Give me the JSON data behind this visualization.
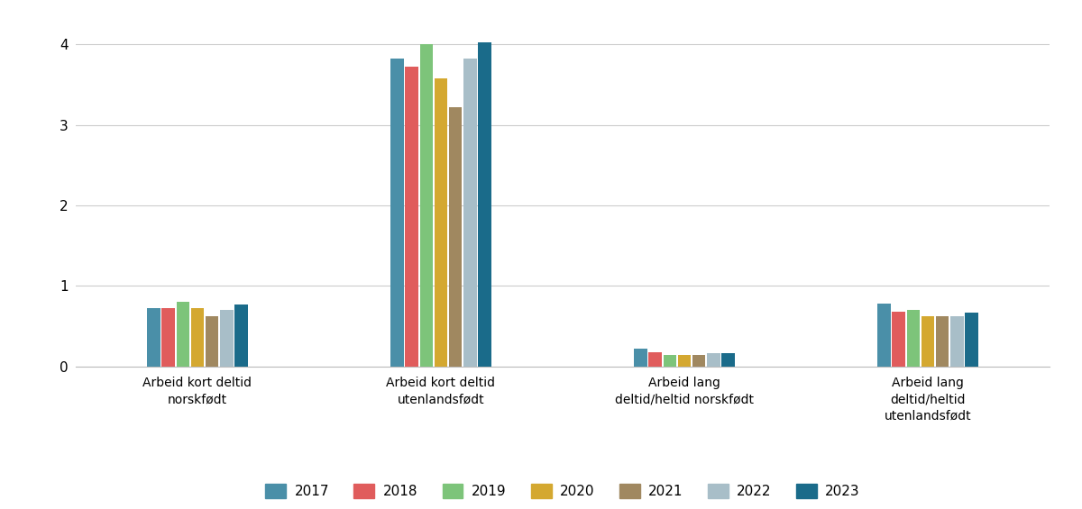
{
  "categories": [
    "Arbeid kort deltid\nnorskfødt",
    "Arbeid kort deltid\nutenlandsfødt",
    "Arbeid lang\ndeltid/heltid norskfødt",
    "Arbeid lang\ndeltid/heltid\nutenlandsfødt"
  ],
  "years": [
    "2017",
    "2018",
    "2019",
    "2020",
    "2021",
    "2022",
    "2023"
  ],
  "colors": [
    "#4a8fa8",
    "#e05c5c",
    "#7dc47a",
    "#d4a830",
    "#a08860",
    "#a8bec8",
    "#1a6b8a"
  ],
  "values": {
    "Arbeid kort deltid norskfødt": [
      0.73,
      0.73,
      0.8,
      0.72,
      0.62,
      0.7,
      0.77
    ],
    "Arbeid kort deltid utenlandsfødt": [
      3.83,
      3.73,
      4.0,
      3.58,
      3.22,
      3.82,
      4.03
    ],
    "Arbeid lang deltid/heltid norskfødt": [
      0.22,
      0.18,
      0.14,
      0.14,
      0.14,
      0.17,
      0.17
    ],
    "Arbeid lang deltid/heltid utenlandsfødt": [
      0.78,
      0.68,
      0.7,
      0.62,
      0.63,
      0.63,
      0.67
    ]
  },
  "ylim": [
    0,
    4.3
  ],
  "yticks": [
    0,
    1,
    2,
    3,
    4
  ],
  "background_color": "#ffffff",
  "grid_color": "#cccccc",
  "bar_width": 0.09,
  "group_centers": [
    1.0,
    2.5,
    4.0,
    5.5
  ],
  "xlim": [
    0.25,
    6.25
  ]
}
